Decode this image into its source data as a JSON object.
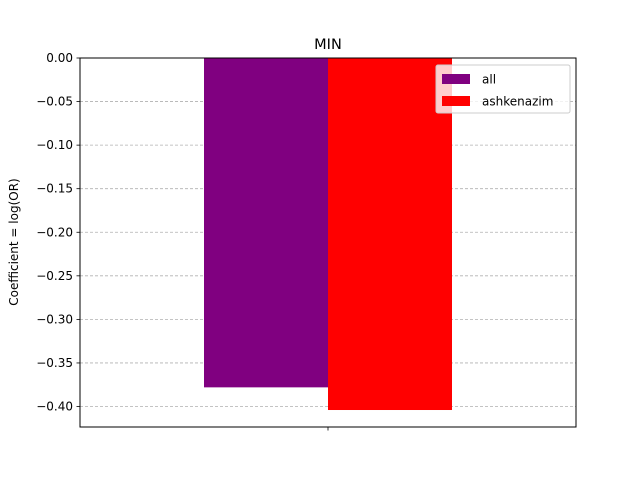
{
  "chart_data": {
    "type": "bar",
    "title": "MIN",
    "xlabel": "",
    "ylabel": "Coefficient = log(OR)",
    "categories": [
      ""
    ],
    "series": [
      {
        "name": "all",
        "values": [
          -0.378
        ],
        "color": "#800080"
      },
      {
        "name": "ashkenazim",
        "values": [
          -0.404
        ],
        "color": "#ff0000"
      }
    ],
    "ylim": [
      -0.4235,
      0.0
    ],
    "yticks": [
      0.0,
      -0.05,
      -0.1,
      -0.15,
      -0.2,
      -0.25,
      -0.3,
      -0.35,
      -0.4
    ],
    "ytick_labels": [
      "0.00",
      "−0.05",
      "−0.10",
      "−0.15",
      "−0.20",
      "−0.25",
      "−0.30",
      "−0.35",
      "−0.40"
    ],
    "grid": "y-dashed",
    "legend_position": "top-right"
  },
  "colors": {
    "grid": "#b0b0b0",
    "axis": "#000000",
    "legend_border": "#cccccc"
  }
}
